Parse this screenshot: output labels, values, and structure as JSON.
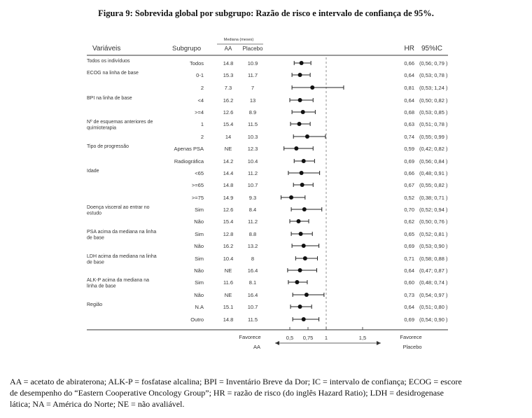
{
  "title": "Figura 9: Sobrevida global por subgrupo: Razão de risco e intervalo de confiança de 95%.",
  "headers": {
    "variables": "Variáveis",
    "subgroup": "Subgrupo",
    "median_group": "Mediana (meses)",
    "aa": "AA",
    "placebo": "Placebo",
    "hr": "HR",
    "ci": "95%IC"
  },
  "bottom": {
    "favors_left_1": "Favorece",
    "favors_left_2": "AA",
    "favors_right_1": "Favorece",
    "favors_right_2": "Placebo"
  },
  "chart_data": {
    "type": "forest",
    "x_ticks": [
      0.5,
      0.75,
      1,
      1.5
    ],
    "x_tick_labels": [
      "0.5",
      "0.75",
      "1",
      "1.5"
    ],
    "xlim": [
      0.27,
      1.75
    ],
    "reference_line": 1,
    "rows": [
      {
        "variable": "Todos os indivíduos",
        "subgroup": "Todos",
        "aa": "14.8",
        "placebo": "10.9",
        "hr": 0.66,
        "lo": 0.56,
        "hi": 0.79,
        "hr_label": "0,66",
        "ci_label": "(0,56; 0,79 )"
      },
      {
        "variable": "ECOG na linha de base",
        "subgroup": "0-1",
        "aa": "15.3",
        "placebo": "11.7",
        "hr": 0.64,
        "lo": 0.53,
        "hi": 0.78,
        "hr_label": "0,64",
        "ci_label": "(0,53; 0,78 )"
      },
      {
        "variable": "",
        "subgroup": "2",
        "aa": "7.3",
        "placebo": "7",
        "hr": 0.81,
        "lo": 0.53,
        "hi": 1.24,
        "hr_label": "0,81",
        "ci_label": "(0,53; 1,24 )"
      },
      {
        "variable": "BPI na linha de base",
        "subgroup": "<4",
        "aa": "16.2",
        "placebo": "13",
        "hr": 0.64,
        "lo": 0.5,
        "hi": 0.82,
        "hr_label": "0,64",
        "ci_label": "(0,50; 0,82 )"
      },
      {
        "variable": "",
        "subgroup": ">=4",
        "aa": "12.6",
        "placebo": "8.9",
        "hr": 0.68,
        "lo": 0.53,
        "hi": 0.85,
        "hr_label": "0,68",
        "ci_label": "(0,53; 0,85 )"
      },
      {
        "variable": "Nº de esquemas anteriores de quimioterapia",
        "subgroup": "1",
        "aa": "15.4",
        "placebo": "11.5",
        "hr": 0.63,
        "lo": 0.51,
        "hi": 0.78,
        "hr_label": "0,63",
        "ci_label": "(0,51; 0,78 )"
      },
      {
        "variable": "",
        "subgroup": "2",
        "aa": "14",
        "placebo": "10.3",
        "hr": 0.74,
        "lo": 0.55,
        "hi": 0.99,
        "hr_label": "0,74",
        "ci_label": "(0,55; 0,99 )"
      },
      {
        "variable": "Tipo de progressão",
        "subgroup": "Apenas PSA",
        "aa": "NE",
        "placebo": "12.3",
        "hr": 0.59,
        "lo": 0.42,
        "hi": 0.82,
        "hr_label": "0,59",
        "ci_label": "(0,42; 0,82 )"
      },
      {
        "variable": "",
        "subgroup": "Radiográfica",
        "aa": "14.2",
        "placebo": "10.4",
        "hr": 0.69,
        "lo": 0.56,
        "hi": 0.84,
        "hr_label": "0,69",
        "ci_label": "(0,56; 0,84 )"
      },
      {
        "variable": "Idade",
        "subgroup": "<65",
        "aa": "14.4",
        "placebo": "11.2",
        "hr": 0.66,
        "lo": 0.48,
        "hi": 0.91,
        "hr_label": "0,66",
        "ci_label": "(0,48; 0,91 )"
      },
      {
        "variable": "",
        "subgroup": ">=65",
        "aa": "14.8",
        "placebo": "10.7",
        "hr": 0.67,
        "lo": 0.55,
        "hi": 0.82,
        "hr_label": "0,67",
        "ci_label": "(0,55; 0,82 )"
      },
      {
        "variable": "",
        "subgroup": ">=75",
        "aa": "14.9",
        "placebo": "9.3",
        "hr": 0.52,
        "lo": 0.38,
        "hi": 0.71,
        "hr_label": "0,52",
        "ci_label": "(0,38; 0,71 )"
      },
      {
        "variable": "Doença visceral ao entrar no estudo",
        "subgroup": "Sim",
        "aa": "12.6",
        "placebo": "8.4",
        "hr": 0.7,
        "lo": 0.52,
        "hi": 0.94,
        "hr_label": "0,70",
        "ci_label": "(0,52; 0,94 )"
      },
      {
        "variable": "",
        "subgroup": "Não",
        "aa": "15.4",
        "placebo": "11.2",
        "hr": 0.62,
        "lo": 0.5,
        "hi": 0.76,
        "hr_label": "0,62",
        "ci_label": "(0,50; 0,76 )"
      },
      {
        "variable": "PSA acima da mediana na linha de base",
        "subgroup": "Sim",
        "aa": "12.8",
        "placebo": "8.8",
        "hr": 0.65,
        "lo": 0.52,
        "hi": 0.81,
        "hr_label": "0,65",
        "ci_label": "(0,52; 0,81 )"
      },
      {
        "variable": "",
        "subgroup": "Não",
        "aa": "16.2",
        "placebo": "13.2",
        "hr": 0.69,
        "lo": 0.53,
        "hi": 0.9,
        "hr_label": "0,69",
        "ci_label": "(0,53; 0,90 )"
      },
      {
        "variable": "LDH acima da mediana na linha de base",
        "subgroup": "Sim",
        "aa": "10.4",
        "placebo": "8",
        "hr": 0.71,
        "lo": 0.58,
        "hi": 0.88,
        "hr_label": "0,71",
        "ci_label": "(0,58; 0,88 )"
      },
      {
        "variable": "",
        "subgroup": "Não",
        "aa": "NE",
        "placebo": "16.4",
        "hr": 0.64,
        "lo": 0.47,
        "hi": 0.87,
        "hr_label": "0,64",
        "ci_label": "(0,47; 0,87 )"
      },
      {
        "variable": "ALK-P acima da mediana na linha de base",
        "subgroup": "Sim",
        "aa": "11.6",
        "placebo": "8.1",
        "hr": 0.6,
        "lo": 0.48,
        "hi": 0.74,
        "hr_label": "0,60",
        "ci_label": "(0,48; 0,74 )"
      },
      {
        "variable": "",
        "subgroup": "Não",
        "aa": "NE",
        "placebo": "16.4",
        "hr": 0.73,
        "lo": 0.54,
        "hi": 0.97,
        "hr_label": "0,73",
        "ci_label": "(0,54; 0,97 )"
      },
      {
        "variable": "Região",
        "subgroup": "N.A",
        "aa": "15.1",
        "placebo": "10.7",
        "hr": 0.64,
        "lo": 0.51,
        "hi": 0.8,
        "hr_label": "0,64",
        "ci_label": "(0,51; 0,80 )"
      },
      {
        "variable": "",
        "subgroup": "Outro",
        "aa": "14.8",
        "placebo": "11.5",
        "hr": 0.69,
        "lo": 0.54,
        "hi": 0.9,
        "hr_label": "0,69",
        "ci_label": "(0,54; 0,90 )"
      }
    ]
  },
  "caption_lines": [
    "AA = acetato de abiraterona; ALK-P = fosfatase alcalina; BPI = Inventário Breve da Dor; IC = intervalo de confiança; ECOG = escore",
    "de desempenho do “Eastern Cooperative Oncology Group”; HR = razão de risco (do inglês Hazard Ratio); LDH = desidrogenase",
    "lática; NA = América do Norte; NE = não avaliável."
  ]
}
